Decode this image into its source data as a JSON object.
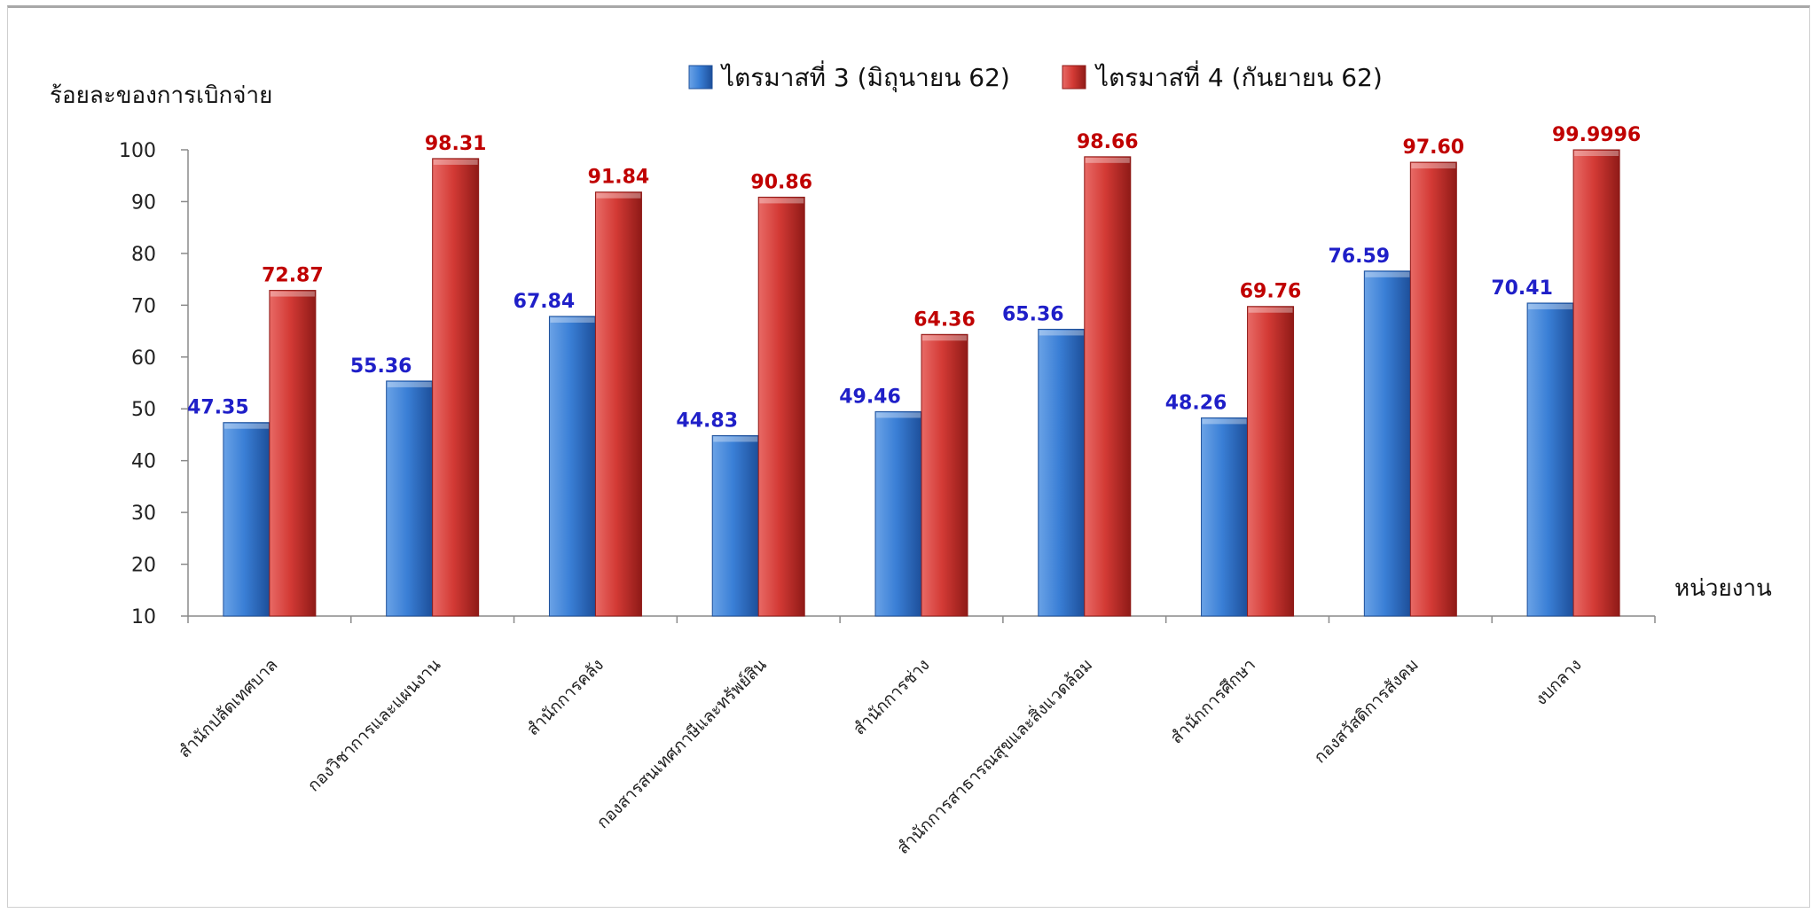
{
  "chart_data": {
    "type": "bar",
    "ylabel": "ร้อยละของการเบิกจ่าย",
    "xlabel": "หน่วยงาน",
    "ylim": [
      10,
      100
    ],
    "yticks": [
      "100",
      "90",
      "80",
      "70",
      "60",
      "50",
      "40",
      "30",
      "20",
      "10"
    ],
    "categories": [
      "สำนักปลัดเทศบาล",
      "กองวิชาการและแผนงาน",
      "สำนักการคลัง",
      "กองสารสนเทศภาษีและทรัพย์สิน",
      "สำนักการช่าง",
      "สำนักการสาธารณสุขและสิ่งแวดล้อม",
      "สำนักการศึกษา",
      "กองสวัสดิการสังคม",
      "งบกลาง"
    ],
    "series": [
      {
        "name": "ไตรมาสที่ 3 (มิถุนายน 62)",
        "color": "#2f6fc0",
        "label_color": "#1f1fc8",
        "values": [
          47.35,
          55.36,
          67.84,
          44.83,
          49.46,
          65.36,
          48.26,
          76.59,
          70.41
        ],
        "labels": [
          "47.35",
          "55.36",
          "67.84",
          "44.83",
          "49.46",
          "65.36",
          "48.26",
          "76.59",
          "70.41"
        ]
      },
      {
        "name": "ไตรมาสที่ 4 (กันยายน 62)",
        "color": "#c8302c",
        "label_color": "#c00000",
        "values": [
          72.87,
          98.31,
          91.84,
          90.86,
          64.36,
          98.66,
          69.76,
          97.6,
          99.9996
        ],
        "labels": [
          "72.87",
          "98.31",
          "91.84",
          "90.86",
          "64.36",
          "98.66",
          "69.76",
          "97.60",
          "99.9996"
        ]
      }
    ],
    "legend_position": "top",
    "grid": false
  }
}
